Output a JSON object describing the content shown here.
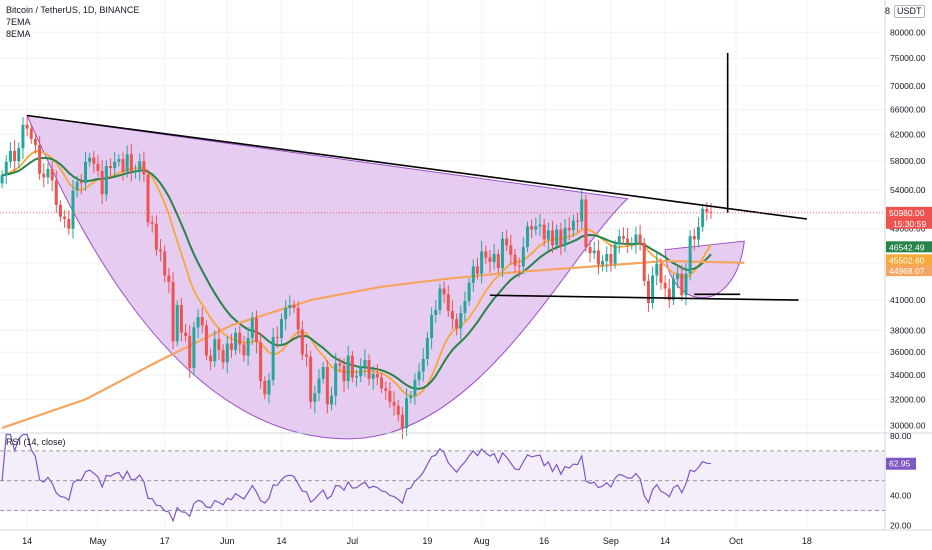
{
  "header": {
    "symbol_line": "Bitcoin / TetherUS, 1D, BINANCE",
    "ema_a": "7EMA",
    "ema_b": "8EMA",
    "currency": "USDT",
    "currency_prefix": "8"
  },
  "rsi": {
    "label": "RSI (14, close)",
    "value_tag": "62.95"
  },
  "colors": {
    "bull": "#26a69a",
    "bear": "#ef5350",
    "ema7": "#f6a937",
    "ema8": "#26834a",
    "sma200": "#f5a55f",
    "cup_fill": "#e2c3ef",
    "cup_stroke": "#9c4fc4",
    "rsi_line": "#7e57c2",
    "rsi_band": "#f3eefa",
    "trend": "#000000"
  },
  "chart_data": [
    {
      "type": "candlestick",
      "title": "Bitcoin / TetherUS, 1D, BINANCE",
      "y_scale": "log",
      "ylim": [
        29500,
        85000
      ],
      "x_range": [
        "2021-04-08",
        "2021-10-18"
      ],
      "x_tick_labels": [
        {
          "date": "2021-04-14",
          "label": "14"
        },
        {
          "date": "2021-05-01",
          "label": "May"
        },
        {
          "date": "2021-05-17",
          "label": "17"
        },
        {
          "date": "2021-06-01",
          "label": "Jun"
        },
        {
          "date": "2021-06-14",
          "label": "14"
        },
        {
          "date": "2021-07-01",
          "label": "Jul"
        },
        {
          "date": "2021-07-19",
          "label": "19"
        },
        {
          "date": "2021-08-01",
          "label": "Aug"
        },
        {
          "date": "2021-08-16",
          "label": "16"
        },
        {
          "date": "2021-09-01",
          "label": "Sep"
        },
        {
          "date": "2021-09-14",
          "label": "14"
        },
        {
          "date": "2021-10-01",
          "label": "Oct"
        },
        {
          "date": "2021-10-18",
          "label": "18"
        }
      ],
      "y_tick_values": [
        30000,
        32000,
        34000,
        36000,
        38000,
        41000,
        45000,
        49000,
        54000,
        58000,
        62000,
        66000,
        70000,
        75000,
        80000
      ],
      "y_tick_labels": [
        "30000.00",
        "32000.00",
        "34000.00",
        "36000.00",
        "38000.00",
        "41000.00",
        "45000.00",
        "49000.00",
        "54000.00",
        "58000.00",
        "62000.00",
        "66000.00",
        "70000.00",
        "75000.00",
        "80000.00"
      ],
      "price_tags": [
        {
          "value": 50980,
          "label": "50980.00",
          "sub": "15:30:59",
          "color": "#ef5350"
        },
        {
          "value": 46542.49,
          "label": "46542.49",
          "color": "#26834a"
        },
        {
          "value": 45502.6,
          "label": "45502.60",
          "color": "#f6a937"
        },
        {
          "value": 44968.07,
          "label": "44968.07",
          "color": "#f5a55f"
        }
      ],
      "series": [
        {
          "kind": "candles",
          "start_date": "2021-04-08",
          "interval_days": 1,
          "closes": [
            56000,
            57900,
            59500,
            58000,
            59900,
            63500,
            62900,
            61300,
            60400,
            56200,
            55700,
            56900,
            55300,
            52000,
            50500,
            50200,
            49000,
            53900,
            55100,
            54900,
            57900,
            58500,
            57600,
            56600,
            53400,
            57300,
            57000,
            57900,
            58300,
            56500,
            59000,
            56500,
            56700,
            58000,
            56100,
            49800,
            49600,
            46500,
            46300,
            43600,
            42900,
            37000,
            40500,
            37800,
            37500,
            34600,
            38300,
            39300,
            38500,
            35700,
            35200,
            37200,
            36200,
            35100,
            36800,
            36200,
            37800,
            36700,
            35700,
            37300,
            39200,
            36900,
            33500,
            32400,
            33600,
            37400,
            37300,
            39100,
            40200,
            40500,
            40200,
            38100,
            35800,
            35600,
            31800,
            32500,
            33700,
            34700,
            31600,
            32300,
            35000,
            34800,
            33500,
            35700,
            33800,
            33900,
            34700,
            35300,
            33700,
            34100,
            33800,
            32900,
            32700,
            31800,
            31500,
            30800,
            29800,
            32100,
            32300,
            33600,
            34300,
            35400,
            37300,
            39500,
            40000,
            42200,
            41600,
            39900,
            39100,
            38200,
            39700,
            40900,
            42800,
            44600,
            43800,
            46300,
            45600,
            45100,
            46000,
            44400,
            47800,
            47000,
            45900,
            44700,
            44600,
            46800,
            49300,
            48900,
            49300,
            49500,
            47700,
            48800,
            47000,
            48900,
            46900,
            49100,
            48800,
            50000,
            49900,
            52700,
            46800,
            46100,
            46400,
            44800,
            45200,
            46000,
            44900,
            47100,
            48100,
            47800,
            47300,
            47300,
            48300,
            47300,
            43000,
            40700,
            43600,
            44900,
            42800,
            42200,
            41000,
            43200,
            43800,
            41500,
            43800,
            48100,
            47700,
            49200,
            51500,
            51100,
            50980
          ],
          "o_h_l_source": "wicks approximated from closes"
        },
        {
          "kind": "line",
          "name": "7EMA"
        },
        {
          "kind": "line",
          "name": "8EMA"
        },
        {
          "kind": "line",
          "name": "",
          "points": [
            [
              "2021-04-08",
              29800
            ],
            [
              "2021-04-28",
              32000
            ],
            [
              "2021-05-16",
              35300
            ],
            [
              "2021-06-02",
              38500
            ],
            [
              "2021-06-21",
              41000
            ],
            [
              "2021-07-08",
              42400
            ],
            [
              "2021-07-25",
              43300
            ],
            [
              "2021-08-10",
              44000
            ],
            [
              "2021-08-28",
              44600
            ],
            [
              "2021-09-14",
              45200
            ],
            [
              "2021-10-03",
              45000
            ]
          ]
        }
      ],
      "drawings": [
        {
          "kind": "trendline",
          "points": [
            [
              "2021-04-14",
              65000
            ],
            [
              "2021-10-18",
              50200
            ]
          ]
        },
        {
          "kind": "trendline",
          "points": [
            [
              "2021-08-03",
              41500
            ],
            [
              "2021-10-16",
              41000
            ]
          ]
        },
        {
          "kind": "trendline",
          "points": [
            [
              "2021-09-21",
              41600
            ],
            [
              "2021-10-02",
              41600
            ]
          ]
        },
        {
          "kind": "vertical_line",
          "points": [
            [
              "2021-09-29",
              76000
            ],
            [
              "2021-09-29",
              51000
            ]
          ]
        }
      ]
    },
    {
      "type": "line",
      "title": "RSI (14, close)",
      "ylim": [
        17,
        82
      ],
      "y_tick_values": [
        20,
        40,
        80
      ],
      "y_tick_labels": [
        "20.00",
        "40.00",
        "80.00"
      ],
      "band": [
        30,
        70
      ],
      "series": [
        {
          "name": "",
          "start_date": "2021-04-08",
          "interval_days": 1
        }
      ]
    }
  ]
}
